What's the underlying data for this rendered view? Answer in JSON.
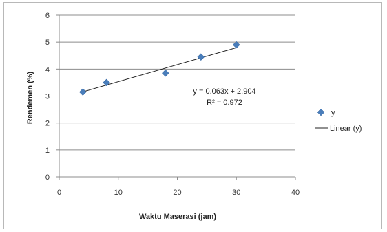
{
  "chart_data": {
    "type": "scatter",
    "title": "",
    "xlabel": "Waktu Maserasi (jam)",
    "ylabel": "Rendemen (%)",
    "xlim": [
      0,
      40
    ],
    "ylim": [
      0,
      6
    ],
    "x_ticks": [
      "0",
      "10",
      "20",
      "30",
      "40"
    ],
    "y_ticks": [
      "0",
      "1",
      "2",
      "3",
      "4",
      "5",
      "6"
    ],
    "grid": "horizontal",
    "legend_position": "right",
    "series": [
      {
        "name": "y",
        "marker": "diamond",
        "color": "#4a7ebb",
        "x": [
          4,
          8,
          18,
          24,
          30
        ],
        "y": [
          3.15,
          3.5,
          3.85,
          4.45,
          4.9
        ]
      }
    ],
    "trendline": {
      "name": "Linear (y)",
      "slope": 0.063,
      "intercept": 2.904,
      "x_range": [
        4,
        30
      ],
      "color": "#222222",
      "equation_label": "y = 0.063x + 2.904",
      "r2_label": "R² = 0.972"
    }
  }
}
